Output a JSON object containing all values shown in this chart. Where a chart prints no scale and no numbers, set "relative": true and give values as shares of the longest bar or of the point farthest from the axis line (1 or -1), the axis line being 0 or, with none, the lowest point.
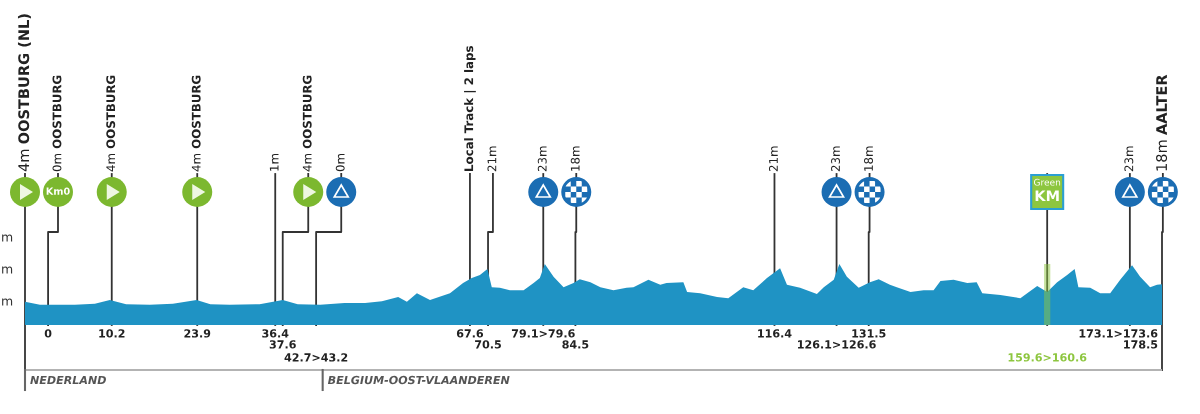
{
  "chart_data": {
    "type": "area",
    "relative": true,
    "tick_labels": "x",
    "x": [
      -3.7,
      -1.3,
      4.3,
      7.5,
      9.9,
      12.5,
      16.3,
      20.0,
      23.8,
      26.0,
      29.1,
      33.9,
      37.6,
      40.0,
      43.6,
      47.5,
      50.8,
      53.5,
      56.1,
      57.5,
      59.1,
      61.2,
      64.4,
      66.5,
      67.9,
      69.2,
      70.4,
      71.1,
      72.4,
      74.0,
      76.2,
      77.8,
      78.8,
      79.6,
      81.0,
      82.6,
      84.2,
      85.2,
      86.9,
      88.5,
      90.6,
      92.7,
      93.8,
      96.2,
      98.1,
      99.1,
      101.8,
      102.4,
      104.5,
      107.2,
      109.0,
      111.4,
      113.0,
      115.2,
      117.3,
      118.4,
      120.5,
      123.2,
      124.3,
      125.9,
      126.8,
      128.0,
      129.9,
      131.7,
      133.1,
      134.9,
      136.0,
      138.2,
      140.3,
      141.9,
      143.0,
      145.1,
      147.3,
      148.8,
      149.7,
      152.6,
      155.8,
      158.5,
      160.1,
      161.7,
      163.3,
      164.5,
      165.1,
      167.0,
      168.6,
      170.2,
      171.8,
      173.7,
      175.0,
      176.6,
      177.7,
      178.5
    ],
    "values": [
      0.38,
      0.33,
      0.33,
      0.35,
      0.41,
      0.34,
      0.33,
      0.35,
      0.41,
      0.34,
      0.33,
      0.34,
      0.41,
      0.34,
      0.33,
      0.36,
      0.36,
      0.39,
      0.46,
      0.38,
      0.52,
      0.41,
      0.52,
      0.69,
      0.77,
      0.82,
      0.92,
      0.62,
      0.61,
      0.57,
      0.57,
      0.69,
      0.77,
      1.0,
      0.79,
      0.62,
      0.69,
      0.75,
      0.7,
      0.62,
      0.57,
      0.61,
      0.62,
      0.74,
      0.66,
      0.69,
      0.7,
      0.54,
      0.52,
      0.46,
      0.44,
      0.62,
      0.57,
      0.77,
      0.93,
      0.66,
      0.61,
      0.51,
      0.62,
      0.74,
      1.0,
      0.79,
      0.61,
      0.7,
      0.75,
      0.66,
      0.62,
      0.54,
      0.57,
      0.57,
      0.72,
      0.74,
      0.69,
      0.7,
      0.52,
      0.49,
      0.44,
      0.64,
      0.54,
      0.7,
      0.82,
      0.92,
      0.62,
      0.61,
      0.52,
      0.52,
      0.74,
      0.98,
      0.79,
      0.62,
      0.66,
      0.67
    ],
    "color": "#1f93c4",
    "xlim": [
      -3.7,
      178.5
    ],
    "xticks": [
      0,
      10.2,
      23.9,
      36.4,
      67.6,
      {
        "value": 79.35,
        "label": "79.1>79.6"
      },
      116.4,
      131.5
    ],
    "ref_lines": [
      {
        "axis": "x",
        "value": -3.7,
        "label": "4m OOSTBURG (NL)"
      },
      {
        "axis": "x",
        "value": 0,
        "label": "0m OOSTBURG"
      },
      {
        "axis": "x",
        "value": 10.2,
        "label": "4m OOSTBURG"
      },
      {
        "axis": "x",
        "value": 23.9,
        "label": "4m OOSTBURG"
      },
      {
        "axis": "x",
        "value": 36.4,
        "label": "1m"
      },
      {
        "axis": "x",
        "value": 37.6,
        "label": "4m OOSTBURG"
      },
      {
        "axis": "x",
        "value": 42.95,
        "label": "0m"
      },
      {
        "axis": "x",
        "value": 67.6,
        "label": "Local Track | 2 laps"
      },
      {
        "axis": "x",
        "value": 70.5,
        "label": "21m"
      },
      {
        "axis": "x",
        "value": 79.35,
        "label": "23m"
      },
      {
        "axis": "x",
        "value": 84.5,
        "label": "18m"
      },
      {
        "axis": "x",
        "value": 116.4,
        "label": "21m"
      },
      {
        "axis": "x",
        "value": 126.35,
        "label": "23m"
      },
      {
        "axis": "x",
        "value": 131.5,
        "label": "18m"
      },
      {
        "axis": "x",
        "value": 160.1
      },
      {
        "axis": "x",
        "value": 173.35,
        "label": "23m"
      },
      {
        "axis": "x",
        "value": 178.5,
        "label": "18m AALTER"
      },
      {
        "axis": "x",
        "value": -3.7,
        "label": "NEDERLAND"
      },
      {
        "axis": "x",
        "value": 44.0,
        "label": "BELGIUM-OOST-VLAANDEREN"
      }
    ],
    "bands": [
      {
        "axis": "x",
        "from": 159.6,
        "to": 160.6,
        "label": "159.6>160.6",
        "color": "#8dc63f"
      }
    ],
    "annotations": [
      "Km0",
      "Green KM",
      "m",
      "m",
      "m",
      "37.6",
      "42.7>43.2",
      "70.5",
      "84.5",
      "126.1>126.6",
      "173.1>173.6",
      "178.5"
    ]
  }
}
